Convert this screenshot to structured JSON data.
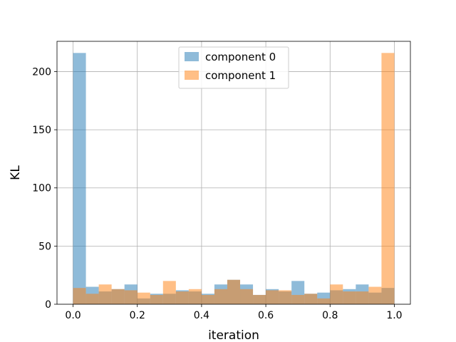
{
  "chart_data": {
    "type": "bar",
    "subtype": "histogram-overlay",
    "title": "",
    "xlabel": "iteration",
    "ylabel": "KL",
    "xlim": [
      -0.05,
      1.05
    ],
    "ylim": [
      0,
      226
    ],
    "grid": true,
    "legend_position": "upper-center",
    "bin_edges": [
      0.0,
      0.04,
      0.08,
      0.12,
      0.16,
      0.2,
      0.24,
      0.28,
      0.32,
      0.36,
      0.4,
      0.44,
      0.48,
      0.52,
      0.56,
      0.6,
      0.64,
      0.68,
      0.72,
      0.76,
      0.8,
      0.84,
      0.88,
      0.92,
      0.96,
      1.0
    ],
    "series": [
      {
        "name": "component 0",
        "color": "#1f77b4",
        "opacity": 0.5,
        "values": [
          216,
          15,
          11,
          13,
          17,
          5,
          9,
          9,
          12,
          11,
          9,
          17,
          21,
          17,
          8,
          13,
          11,
          20,
          9,
          10,
          12,
          13,
          17,
          10,
          14
        ]
      },
      {
        "name": "component 1",
        "color": "#ff7f0e",
        "opacity": 0.5,
        "values": [
          14,
          9,
          17,
          13,
          12,
          10,
          8,
          20,
          11,
          13,
          8,
          13,
          21,
          13,
          8,
          12,
          12,
          8,
          9,
          5,
          17,
          11,
          11,
          15,
          216
        ]
      }
    ],
    "x_ticks": [
      {
        "value": 0.0,
        "label": "0.0"
      },
      {
        "value": 0.2,
        "label": "0.2"
      },
      {
        "value": 0.4,
        "label": "0.4"
      },
      {
        "value": 0.6,
        "label": "0.6"
      },
      {
        "value": 0.8,
        "label": "0.8"
      },
      {
        "value": 1.0,
        "label": "1.0"
      }
    ],
    "y_ticks": [
      {
        "value": 0,
        "label": "0"
      },
      {
        "value": 50,
        "label": "50"
      },
      {
        "value": 100,
        "label": "100"
      },
      {
        "value": 150,
        "label": "150"
      },
      {
        "value": 200,
        "label": "200"
      }
    ]
  }
}
